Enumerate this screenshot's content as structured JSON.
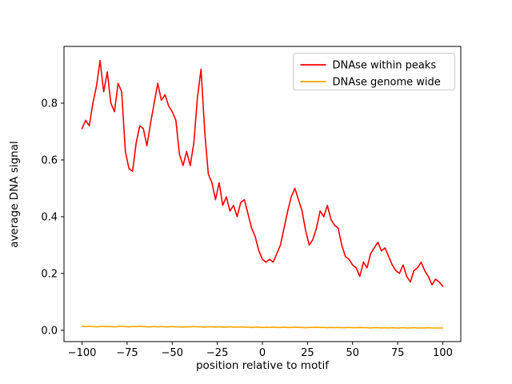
{
  "figure": {
    "background": "#ffffff",
    "spine_color": "#000000",
    "tick_color": "#000000",
    "legend_border_color": "#cccccc",
    "legend_background": "#ffffff"
  },
  "chart_data": {
    "type": "line",
    "title": "",
    "xlabel": "position relative to motif",
    "ylabel": "average DNA signal",
    "xlim": [
      -110,
      110
    ],
    "ylim": [
      -0.04,
      1.0
    ],
    "xticks": [
      -100,
      -75,
      -50,
      -25,
      0,
      25,
      50,
      75,
      100
    ],
    "yticks": [
      0.0,
      0.2,
      0.4,
      0.6,
      0.8
    ],
    "grid": false,
    "legend_position": "upper right",
    "x": [
      -100,
      -98,
      -96,
      -94,
      -92,
      -90,
      -88,
      -86,
      -84,
      -82,
      -80,
      -78,
      -76,
      -74,
      -72,
      -70,
      -68,
      -66,
      -64,
      -62,
      -60,
      -58,
      -56,
      -54,
      -52,
      -50,
      -48,
      -46,
      -44,
      -42,
      -40,
      -38,
      -36,
      -34,
      -32,
      -30,
      -28,
      -26,
      -24,
      -22,
      -20,
      -18,
      -16,
      -14,
      -12,
      -10,
      -8,
      -6,
      -4,
      -2,
      0,
      2,
      4,
      6,
      8,
      10,
      12,
      14,
      16,
      18,
      20,
      22,
      24,
      26,
      28,
      30,
      32,
      34,
      36,
      38,
      40,
      42,
      44,
      46,
      48,
      50,
      52,
      54,
      56,
      58,
      60,
      62,
      64,
      66,
      68,
      70,
      72,
      74,
      76,
      78,
      80,
      82,
      84,
      86,
      88,
      90,
      92,
      94,
      96,
      98,
      100
    ],
    "series": [
      {
        "name": "DNAse within peaks",
        "color": "#ff0000",
        "values": [
          0.71,
          0.74,
          0.72,
          0.8,
          0.86,
          0.95,
          0.84,
          0.91,
          0.8,
          0.77,
          0.87,
          0.84,
          0.63,
          0.57,
          0.56,
          0.66,
          0.72,
          0.71,
          0.65,
          0.73,
          0.8,
          0.87,
          0.81,
          0.83,
          0.79,
          0.77,
          0.74,
          0.62,
          0.58,
          0.63,
          0.58,
          0.66,
          0.82,
          0.92,
          0.7,
          0.55,
          0.52,
          0.46,
          0.52,
          0.44,
          0.47,
          0.42,
          0.44,
          0.4,
          0.45,
          0.46,
          0.41,
          0.36,
          0.33,
          0.28,
          0.25,
          0.24,
          0.25,
          0.24,
          0.27,
          0.3,
          0.36,
          0.42,
          0.47,
          0.5,
          0.46,
          0.42,
          0.35,
          0.3,
          0.32,
          0.36,
          0.42,
          0.4,
          0.44,
          0.39,
          0.37,
          0.36,
          0.3,
          0.26,
          0.25,
          0.23,
          0.22,
          0.19,
          0.24,
          0.22,
          0.27,
          0.29,
          0.31,
          0.28,
          0.29,
          0.26,
          0.23,
          0.21,
          0.2,
          0.23,
          0.19,
          0.17,
          0.21,
          0.22,
          0.24,
          0.21,
          0.19,
          0.16,
          0.18,
          0.17,
          0.155
        ]
      },
      {
        "name": "DNAse genome wide",
        "color": "#ffa500",
        "values": [
          0.014,
          0.013,
          0.014,
          0.013,
          0.012,
          0.013,
          0.014,
          0.013,
          0.013,
          0.012,
          0.013,
          0.014,
          0.013,
          0.012,
          0.013,
          0.013,
          0.014,
          0.013,
          0.012,
          0.012,
          0.013,
          0.012,
          0.013,
          0.012,
          0.012,
          0.013,
          0.012,
          0.012,
          0.011,
          0.012,
          0.012,
          0.013,
          0.012,
          0.012,
          0.011,
          0.012,
          0.012,
          0.011,
          0.012,
          0.011,
          0.011,
          0.012,
          0.011,
          0.011,
          0.012,
          0.011,
          0.011,
          0.01,
          0.011,
          0.011,
          0.01,
          0.011,
          0.01,
          0.011,
          0.01,
          0.01,
          0.011,
          0.01,
          0.01,
          0.011,
          0.01,
          0.01,
          0.009,
          0.01,
          0.01,
          0.011,
          0.01,
          0.01,
          0.009,
          0.01,
          0.009,
          0.01,
          0.009,
          0.009,
          0.01,
          0.009,
          0.009,
          0.01,
          0.009,
          0.009,
          0.008,
          0.009,
          0.009,
          0.008,
          0.009,
          0.008,
          0.009,
          0.008,
          0.008,
          0.009,
          0.008,
          0.008,
          0.009,
          0.008,
          0.008,
          0.008,
          0.009,
          0.008,
          0.008,
          0.008,
          0.008
        ]
      }
    ]
  }
}
